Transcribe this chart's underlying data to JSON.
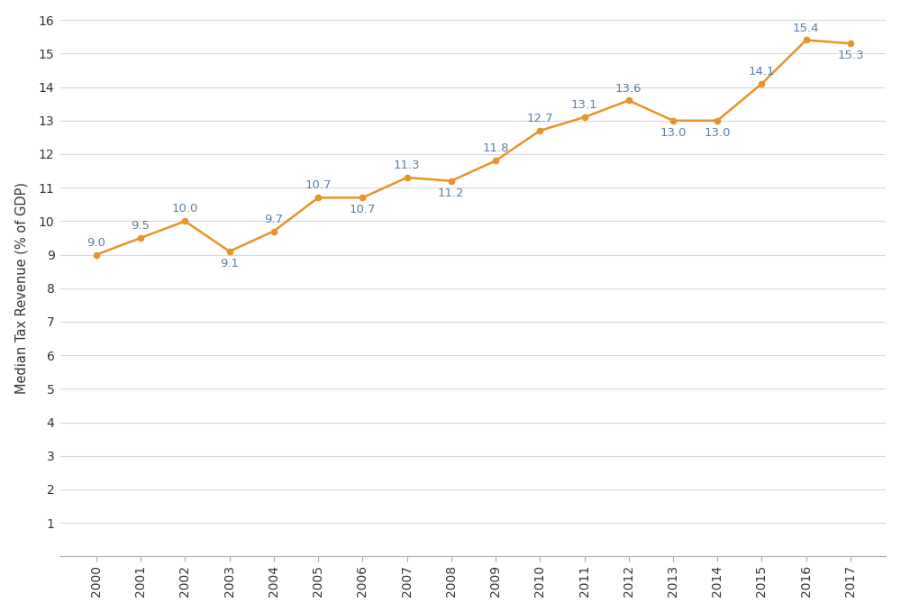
{
  "years": [
    2000,
    2001,
    2002,
    2003,
    2004,
    2005,
    2006,
    2007,
    2008,
    2009,
    2010,
    2011,
    2012,
    2013,
    2014,
    2015,
    2016,
    2017
  ],
  "values": [
    9.0,
    9.5,
    10.0,
    9.1,
    9.7,
    10.7,
    10.7,
    11.3,
    11.2,
    11.8,
    12.7,
    13.1,
    13.6,
    13.0,
    13.0,
    14.1,
    15.4,
    15.3
  ],
  "line_color": "#E8922A",
  "marker_color": "#E8922A",
  "label_color": "#5B7FA6",
  "ylabel": "Median Tax Revenue (% of GDP)",
  "ylim": [
    0,
    16
  ],
  "yticks": [
    1,
    2,
    3,
    4,
    5,
    6,
    7,
    8,
    9,
    10,
    11,
    12,
    13,
    14,
    15,
    16
  ],
  "background_color": "#FFFFFF",
  "grid_color": "#D8D8D8",
  "label_fontsize": 9.5,
  "axis_label_fontsize": 10.5,
  "tick_fontsize": 10,
  "label_above": [
    2000,
    2001,
    2002,
    2004,
    2005,
    2007,
    2009,
    2010,
    2011,
    2012,
    2015,
    2016
  ],
  "label_below": [
    2003,
    2006,
    2008,
    2013,
    2014,
    2017
  ]
}
